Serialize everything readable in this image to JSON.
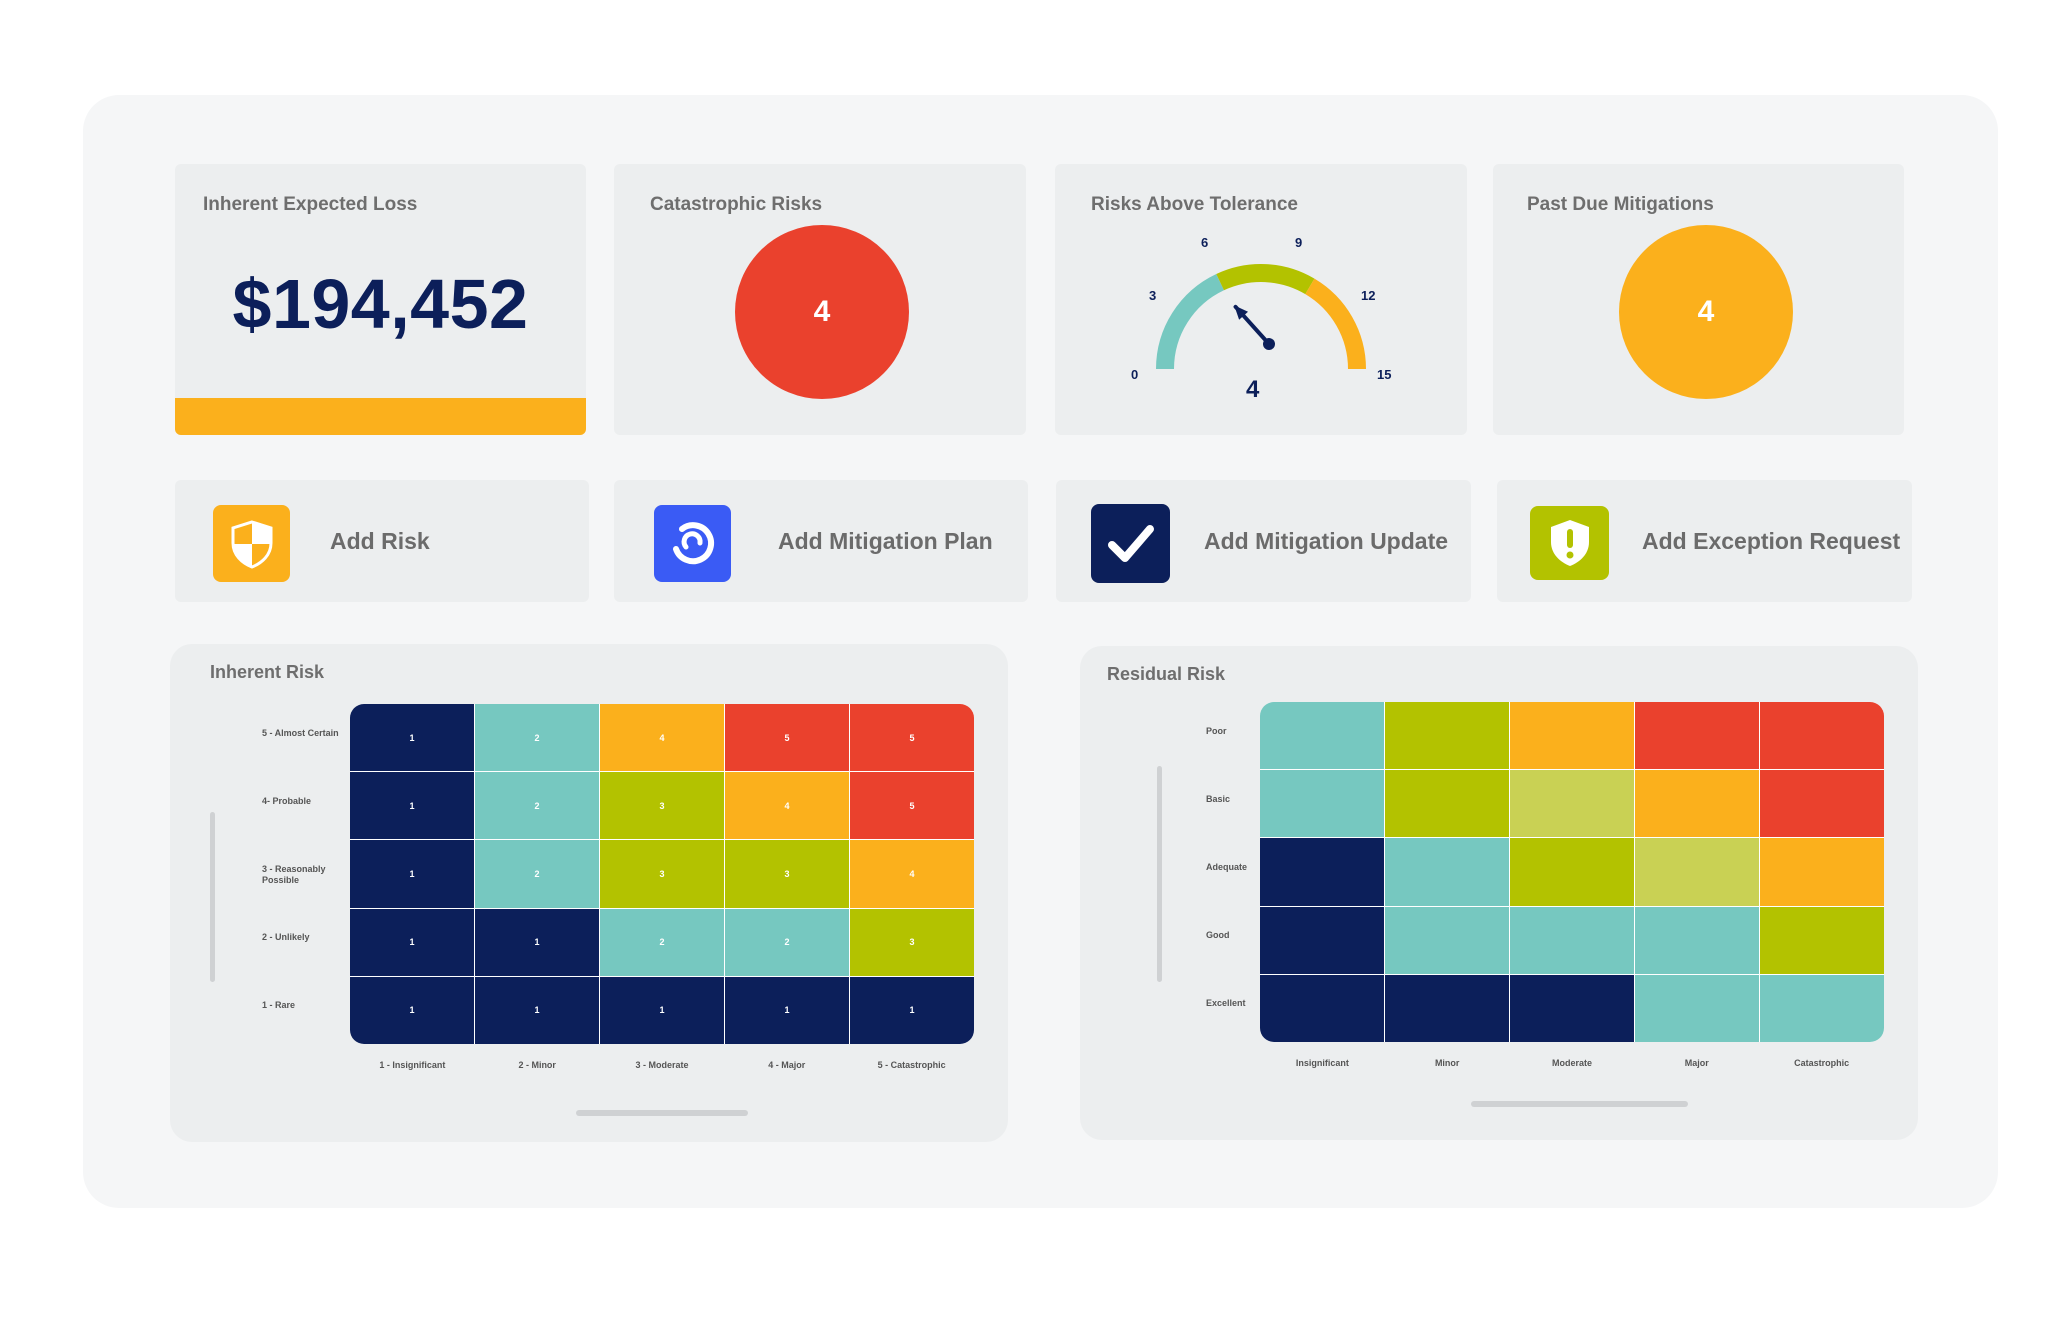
{
  "kpis": {
    "inherent_expected_loss": {
      "title": "Inherent Expected Loss",
      "value": "$194,452"
    },
    "catastrophic_risks": {
      "title": "Catastrophic Risks",
      "value": "4",
      "color": "#ea412d"
    },
    "risks_above_tolerance": {
      "title": "Risks Above Tolerance",
      "value": "4",
      "gauge_value": 4,
      "gauge_max": 15,
      "ticks": [
        "0",
        "3",
        "6",
        "9",
        "12",
        "15"
      ],
      "band_colors": [
        "#76c8c0",
        "#b3c200",
        "#fbb01c"
      ]
    },
    "past_due_mitigations": {
      "title": "Past Due Mitigations",
      "value": "4",
      "color": "#fbb01c"
    }
  },
  "actions": [
    {
      "label": "Add Risk",
      "icon": "shield-checker-icon",
      "color": "#fbb01c"
    },
    {
      "label": "Add Mitigation Plan",
      "icon": "refresh-circle-icon",
      "color": "#3a5bf5"
    },
    {
      "label": "Add Mitigation Update",
      "icon": "checkmark-icon",
      "color": "#0c1f5a"
    },
    {
      "label": "Add Exception Request",
      "icon": "shield-exclamation-icon",
      "color": "#b3c200"
    }
  ],
  "inherent_risk": {
    "title": "Inherent Risk",
    "row_labels": [
      "5 - Almost Certain",
      "4- Probable",
      "3 - Reasonably Possible",
      "2 - Unlikely",
      "1 - Rare"
    ],
    "col_labels": [
      "1 - Insignificant",
      "2 - Minor",
      "3 - Moderate",
      "4 - Major",
      "5 - Catastrophic"
    ],
    "cells": [
      [
        "1",
        "2",
        "4",
        "5",
        "5"
      ],
      [
        "1",
        "2",
        "3",
        "4",
        "5"
      ],
      [
        "1",
        "2",
        "3",
        "3",
        "4"
      ],
      [
        "1",
        "1",
        "2",
        "2",
        "3"
      ],
      [
        "1",
        "1",
        "1",
        "1",
        "1"
      ]
    ],
    "colors": [
      [
        "#0c1f5a",
        "#76c8c0",
        "#fbb01c",
        "#ea412d",
        "#ea412d"
      ],
      [
        "#0c1f5a",
        "#76c8c0",
        "#b3c200",
        "#fbb01c",
        "#ea412d"
      ],
      [
        "#0c1f5a",
        "#76c8c0",
        "#b3c200",
        "#b3c200",
        "#fbb01c"
      ],
      [
        "#0c1f5a",
        "#0c1f5a",
        "#76c8c0",
        "#76c8c0",
        "#b3c200"
      ],
      [
        "#0c1f5a",
        "#0c1f5a",
        "#0c1f5a",
        "#0c1f5a",
        "#0c1f5a"
      ]
    ]
  },
  "residual_risk": {
    "title": "Residual Risk",
    "row_labels": [
      "Poor",
      "Basic",
      "Adequate",
      "Good",
      "Excellent"
    ],
    "col_labels": [
      "Insignificant",
      "Minor",
      "Moderate",
      "Major",
      "Catastrophic"
    ],
    "colors": [
      [
        "#76c8c0",
        "#b3c200",
        "#fbb01c",
        "#ea412d",
        "#ea412d"
      ],
      [
        "#76c8c0",
        "#b3c200",
        "#c9d154",
        "#fbb01c",
        "#ea412d"
      ],
      [
        "#0c1f5a",
        "#76c8c0",
        "#b3c200",
        "#c9d154",
        "#fbb01c"
      ],
      [
        "#0c1f5a",
        "#76c8c0",
        "#76c8c0",
        "#76c8c0",
        "#b3c200"
      ],
      [
        "#0c1f5a",
        "#0c1f5a",
        "#0c1f5a",
        "#76c8c0",
        "#76c8c0"
      ]
    ]
  }
}
